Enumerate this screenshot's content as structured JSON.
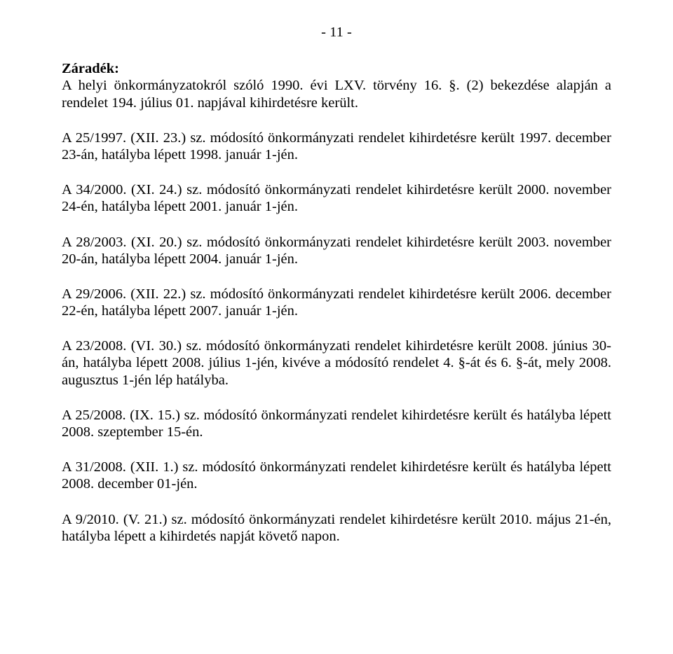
{
  "pageNumber": "- 11 -",
  "heading": "Záradék:",
  "paragraphs": [
    "A helyi önkormányzatokról szóló 1990. évi LXV. törvény 16. §. (2) bekezdése alapján a rendelet 194. július 01. napjával kihirdetésre került.",
    "A 25/1997. (XII. 23.) sz. módosító önkormányzati rendelet kihirdetésre került 1997. december 23-án, hatályba lépett 1998. január 1-jén.",
    "A 34/2000. (XI. 24.) sz. módosító önkormányzati rendelet kihirdetésre került 2000. november 24-én, hatályba lépett 2001. január 1-jén.",
    "A 28/2003. (XI. 20.) sz. módosító önkormányzati rendelet kihirdetésre került 2003. november 20-án, hatályba lépett 2004. január 1-jén.",
    "A 29/2006. (XII. 22.) sz. módosító önkormányzati rendelet kihirdetésre került 2006. december 22-én, hatályba lépett 2007. január 1-jén.",
    "A 23/2008. (VI. 30.) sz. módosító önkormányzati rendelet kihirdetésre került 2008. június 30-án, hatályba lépett 2008. július 1-jén, kivéve a módosító rendelet 4. §-át és 6. §-át, mely 2008. augusztus 1-jén lép hatályba.",
    "A 25/2008. (IX. 15.) sz. módosító önkormányzati rendelet kihirdetésre került és hatályba lépett 2008. szeptember 15-én.",
    "A 31/2008. (XII. 1.) sz. módosító önkormányzati rendelet kihirdetésre került és hatályba lépett 2008. december 01-jén.",
    "A 9/2010. (V. 21.) sz. módosító önkormányzati rendelet kihirdetésre került 2010. május 21-én, hatályba lépett a kihirdetés napját követő napon."
  ]
}
